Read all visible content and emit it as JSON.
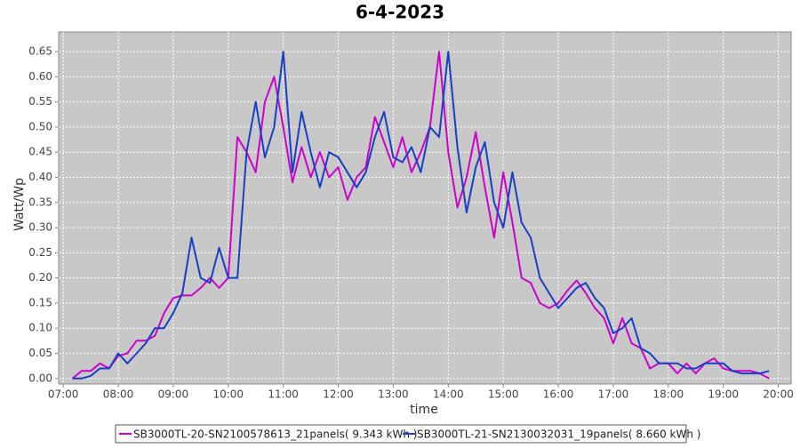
{
  "chart_data": {
    "type": "line",
    "title": "6-4-2023",
    "x_label": "time",
    "y_label": "Watt/Wp",
    "x": [
      430,
      440,
      450,
      460,
      470,
      480,
      490,
      500,
      510,
      520,
      530,
      540,
      550,
      560,
      570,
      580,
      590,
      600,
      610,
      620,
      630,
      640,
      650,
      660,
      670,
      680,
      690,
      700,
      710,
      720,
      730,
      740,
      750,
      760,
      770,
      780,
      790,
      800,
      810,
      820,
      830,
      840,
      850,
      860,
      870,
      880,
      890,
      900,
      910,
      920,
      930,
      940,
      950,
      960,
      970,
      980,
      990,
      1000,
      1010,
      1020,
      1030,
      1040,
      1050,
      1060,
      1070,
      1080,
      1090,
      1100,
      1110,
      1120,
      1130,
      1140,
      1150,
      1160,
      1170,
      1180,
      1190
    ],
    "xlim": [
      415,
      1214
    ],
    "xticks": [
      {
        "value": 420,
        "label": "07:00"
      },
      {
        "value": 480,
        "label": "08:00"
      },
      {
        "value": 540,
        "label": "09:00"
      },
      {
        "value": 600,
        "label": "10:00"
      },
      {
        "value": 660,
        "label": "11:00"
      },
      {
        "value": 720,
        "label": "12:00"
      },
      {
        "value": 780,
        "label": "13:00"
      },
      {
        "value": 840,
        "label": "14:00"
      },
      {
        "value": 900,
        "label": "15:00"
      },
      {
        "value": 960,
        "label": "16:00"
      },
      {
        "value": 1020,
        "label": "17:00"
      },
      {
        "value": 1080,
        "label": "18:00"
      },
      {
        "value": 1140,
        "label": "19:00"
      },
      {
        "value": 1200,
        "label": "20:00"
      }
    ],
    "ylim": [
      -0.011,
      0.689
    ],
    "yticks": [
      {
        "value": 0,
        "label": "0.00"
      },
      {
        "value": 0.05,
        "label": "0.05"
      },
      {
        "value": 0.1,
        "label": "0.10"
      },
      {
        "value": 0.15,
        "label": "0.15"
      },
      {
        "value": 0.2,
        "label": "0.20"
      },
      {
        "value": 0.25,
        "label": "0.25"
      },
      {
        "value": 0.3,
        "label": "0.30"
      },
      {
        "value": 0.35,
        "label": "0.35"
      },
      {
        "value": 0.4,
        "label": "0.40"
      },
      {
        "value": 0.45,
        "label": "0.45"
      },
      {
        "value": 0.5,
        "label": "0.50"
      },
      {
        "value": 0.55,
        "label": "0.55"
      },
      {
        "value": 0.6,
        "label": "0.60"
      },
      {
        "value": 0.65,
        "label": "0.65"
      }
    ],
    "grid": true,
    "series": [
      {
        "name": "SB3000TL-20-SN2100578613_21panels( 9.343 kWh )",
        "color": "#cc00cc",
        "values": [
          0,
          0.015,
          0.015,
          0.03,
          0.02,
          0.045,
          0.05,
          0.075,
          0.075,
          0.085,
          0.13,
          0.16,
          0.165,
          0.165,
          0.18,
          0.2,
          0.18,
          0.2,
          0.48,
          0.45,
          0.41,
          0.55,
          0.6,
          0.5,
          0.39,
          0.46,
          0.4,
          0.45,
          0.4,
          0.42,
          0.355,
          0.4,
          0.42,
          0.52,
          0.47,
          0.42,
          0.48,
          0.41,
          0.45,
          0.5,
          0.65,
          0.45,
          0.34,
          0.4,
          0.49,
          0.38,
          0.28,
          0.41,
          0.31,
          0.2,
          0.19,
          0.15,
          0.14,
          0.15,
          0.175,
          0.195,
          0.17,
          0.14,
          0.12,
          0.07,
          0.12,
          0.07,
          0.06,
          0.02,
          0.03,
          0.03,
          0.01,
          0.03,
          0.01,
          0.03,
          0.04,
          0.02,
          0.015,
          0.015,
          0.015,
          0.01,
          0
        ]
      },
      {
        "name": "SB3000TL-21-SN2130032031_19panels( 8.660 kWh )",
        "color": "#1a3fc4",
        "values": [
          0,
          0,
          0.005,
          0.02,
          0.02,
          0.05,
          0.03,
          0.05,
          0.07,
          0.1,
          0.1,
          0.13,
          0.17,
          0.28,
          0.2,
          0.19,
          0.26,
          0.2,
          0.2,
          0.45,
          0.55,
          0.44,
          0.5,
          0.65,
          0.41,
          0.53,
          0.45,
          0.38,
          0.45,
          0.44,
          0.41,
          0.38,
          0.41,
          0.48,
          0.53,
          0.44,
          0.43,
          0.46,
          0.41,
          0.5,
          0.48,
          0.65,
          0.46,
          0.33,
          0.42,
          0.47,
          0.35,
          0.3,
          0.41,
          0.31,
          0.28,
          0.2,
          0.17,
          0.14,
          0.16,
          0.18,
          0.19,
          0.16,
          0.14,
          0.09,
          0.1,
          0.12,
          0.06,
          0.05,
          0.03,
          0.03,
          0.03,
          0.02,
          0.02,
          0.03,
          0.03,
          0.03,
          0.015,
          0.01,
          0.01,
          0.01,
          0.015
        ]
      }
    ]
  }
}
